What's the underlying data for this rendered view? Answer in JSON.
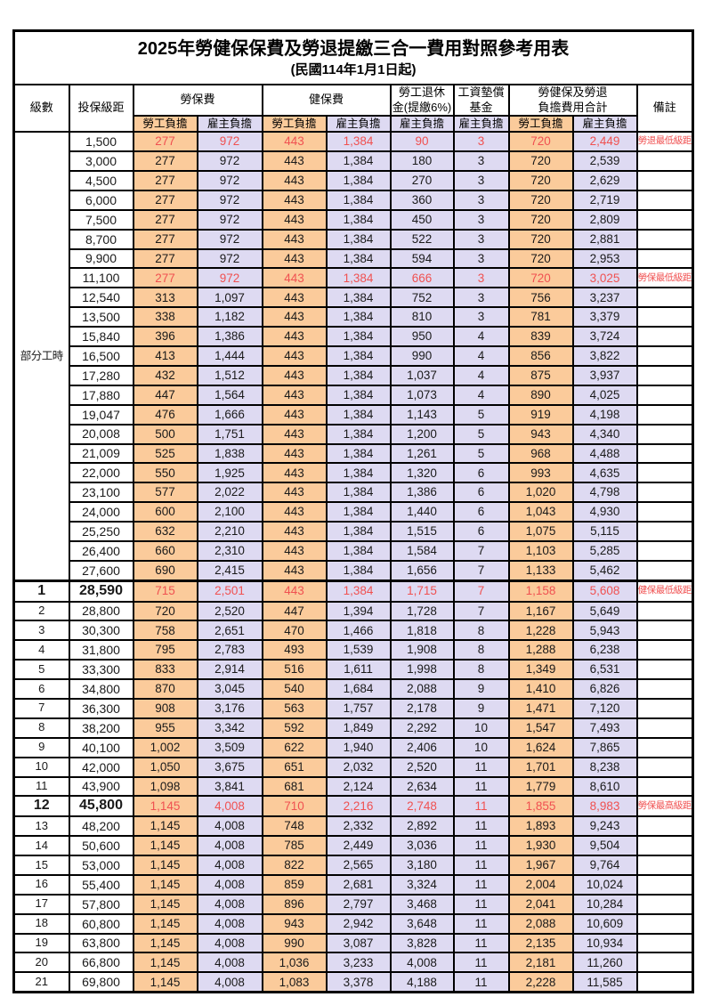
{
  "title": "2025年勞健保保費及勞退提繳三合一費用對照參考用表",
  "subtitle": "(民國114年1月1日起)",
  "colors": {
    "employee_share_bg": "#FBCB9B",
    "employer_share_bg": "#DEDAF2",
    "highlight_text": "#F05151",
    "border": "#000000"
  },
  "headers": {
    "level": "級數",
    "salary_bracket": "投保級距",
    "labor_insurance": "勞保費",
    "health_insurance": "健保費",
    "pension_line1": "勞工退休",
    "pension_line2": "金(提繳6%)",
    "wage_fund_line1": "工資墊償",
    "wage_fund_line2": "基金",
    "total_line1": "勞健保及勞退",
    "total_line2": "負擔費用合計",
    "note": "備註",
    "employee_share": "勞工負擔",
    "employer_share": "雇主負擔"
  },
  "part_time": {
    "label": "部分工時",
    "row_count": 23
  },
  "rows": [
    {
      "level": "",
      "salary": "1,500",
      "labor_emp": "277",
      "labor_er": "972",
      "health_emp": "443",
      "health_er": "1,384",
      "pension_er": "90",
      "fund_er": "3",
      "total_emp": "720",
      "total_er": "2,449",
      "note": "勞退最低級距",
      "highlight": true,
      "emphasis": false
    },
    {
      "level": "",
      "salary": "3,000",
      "labor_emp": "277",
      "labor_er": "972",
      "health_emp": "443",
      "health_er": "1,384",
      "pension_er": "180",
      "fund_er": "3",
      "total_emp": "720",
      "total_er": "2,539",
      "note": "",
      "highlight": false,
      "emphasis": false
    },
    {
      "level": "",
      "salary": "4,500",
      "labor_emp": "277",
      "labor_er": "972",
      "health_emp": "443",
      "health_er": "1,384",
      "pension_er": "270",
      "fund_er": "3",
      "total_emp": "720",
      "total_er": "2,629",
      "note": "",
      "highlight": false,
      "emphasis": false
    },
    {
      "level": "",
      "salary": "6,000",
      "labor_emp": "277",
      "labor_er": "972",
      "health_emp": "443",
      "health_er": "1,384",
      "pension_er": "360",
      "fund_er": "3",
      "total_emp": "720",
      "total_er": "2,719",
      "note": "",
      "highlight": false,
      "emphasis": false
    },
    {
      "level": "",
      "salary": "7,500",
      "labor_emp": "277",
      "labor_er": "972",
      "health_emp": "443",
      "health_er": "1,384",
      "pension_er": "450",
      "fund_er": "3",
      "total_emp": "720",
      "total_er": "2,809",
      "note": "",
      "highlight": false,
      "emphasis": false
    },
    {
      "level": "",
      "salary": "8,700",
      "labor_emp": "277",
      "labor_er": "972",
      "health_emp": "443",
      "health_er": "1,384",
      "pension_er": "522",
      "fund_er": "3",
      "total_emp": "720",
      "total_er": "2,881",
      "note": "",
      "highlight": false,
      "emphasis": false
    },
    {
      "level": "",
      "salary": "9,900",
      "labor_emp": "277",
      "labor_er": "972",
      "health_emp": "443",
      "health_er": "1,384",
      "pension_er": "594",
      "fund_er": "3",
      "total_emp": "720",
      "total_er": "2,953",
      "note": "",
      "highlight": false,
      "emphasis": false
    },
    {
      "level": "",
      "salary": "11,100",
      "labor_emp": "277",
      "labor_er": "972",
      "health_emp": "443",
      "health_er": "1,384",
      "pension_er": "666",
      "fund_er": "3",
      "total_emp": "720",
      "total_er": "3,025",
      "note": "勞保最低級距",
      "highlight": true,
      "emphasis": false
    },
    {
      "level": "",
      "salary": "12,540",
      "labor_emp": "313",
      "labor_er": "1,097",
      "health_emp": "443",
      "health_er": "1,384",
      "pension_er": "752",
      "fund_er": "3",
      "total_emp": "756",
      "total_er": "3,237",
      "note": "",
      "highlight": false,
      "emphasis": false
    },
    {
      "level": "",
      "salary": "13,500",
      "labor_emp": "338",
      "labor_er": "1,182",
      "health_emp": "443",
      "health_er": "1,384",
      "pension_er": "810",
      "fund_er": "3",
      "total_emp": "781",
      "total_er": "3,379",
      "note": "",
      "highlight": false,
      "emphasis": false
    },
    {
      "level": "",
      "salary": "15,840",
      "labor_emp": "396",
      "labor_er": "1,386",
      "health_emp": "443",
      "health_er": "1,384",
      "pension_er": "950",
      "fund_er": "4",
      "total_emp": "839",
      "total_er": "3,724",
      "note": "",
      "highlight": false,
      "emphasis": false
    },
    {
      "level": "",
      "salary": "16,500",
      "labor_emp": "413",
      "labor_er": "1,444",
      "health_emp": "443",
      "health_er": "1,384",
      "pension_er": "990",
      "fund_er": "4",
      "total_emp": "856",
      "total_er": "3,822",
      "note": "",
      "highlight": false,
      "emphasis": false
    },
    {
      "level": "",
      "salary": "17,280",
      "labor_emp": "432",
      "labor_er": "1,512",
      "health_emp": "443",
      "health_er": "1,384",
      "pension_er": "1,037",
      "fund_er": "4",
      "total_emp": "875",
      "total_er": "3,937",
      "note": "",
      "highlight": false,
      "emphasis": false
    },
    {
      "level": "",
      "salary": "17,880",
      "labor_emp": "447",
      "labor_er": "1,564",
      "health_emp": "443",
      "health_er": "1,384",
      "pension_er": "1,073",
      "fund_er": "4",
      "total_emp": "890",
      "total_er": "4,025",
      "note": "",
      "highlight": false,
      "emphasis": false
    },
    {
      "level": "",
      "salary": "19,047",
      "labor_emp": "476",
      "labor_er": "1,666",
      "health_emp": "443",
      "health_er": "1,384",
      "pension_er": "1,143",
      "fund_er": "5",
      "total_emp": "919",
      "total_er": "4,198",
      "note": "",
      "highlight": false,
      "emphasis": false
    },
    {
      "level": "",
      "salary": "20,008",
      "labor_emp": "500",
      "labor_er": "1,751",
      "health_emp": "443",
      "health_er": "1,384",
      "pension_er": "1,200",
      "fund_er": "5",
      "total_emp": "943",
      "total_er": "4,340",
      "note": "",
      "highlight": false,
      "emphasis": false
    },
    {
      "level": "",
      "salary": "21,009",
      "labor_emp": "525",
      "labor_er": "1,838",
      "health_emp": "443",
      "health_er": "1,384",
      "pension_er": "1,261",
      "fund_er": "5",
      "total_emp": "968",
      "total_er": "4,488",
      "note": "",
      "highlight": false,
      "emphasis": false
    },
    {
      "level": "",
      "salary": "22,000",
      "labor_emp": "550",
      "labor_er": "1,925",
      "health_emp": "443",
      "health_er": "1,384",
      "pension_er": "1,320",
      "fund_er": "6",
      "total_emp": "993",
      "total_er": "4,635",
      "note": "",
      "highlight": false,
      "emphasis": false
    },
    {
      "level": "",
      "salary": "23,100",
      "labor_emp": "577",
      "labor_er": "2,022",
      "health_emp": "443",
      "health_er": "1,384",
      "pension_er": "1,386",
      "fund_er": "6",
      "total_emp": "1,020",
      "total_er": "4,798",
      "note": "",
      "highlight": false,
      "emphasis": false
    },
    {
      "level": "",
      "salary": "24,000",
      "labor_emp": "600",
      "labor_er": "2,100",
      "health_emp": "443",
      "health_er": "1,384",
      "pension_er": "1,440",
      "fund_er": "6",
      "total_emp": "1,043",
      "total_er": "4,930",
      "note": "",
      "highlight": false,
      "emphasis": false
    },
    {
      "level": "",
      "salary": "25,250",
      "labor_emp": "632",
      "labor_er": "2,210",
      "health_emp": "443",
      "health_er": "1,384",
      "pension_er": "1,515",
      "fund_er": "6",
      "total_emp": "1,075",
      "total_er": "5,115",
      "note": "",
      "highlight": false,
      "emphasis": false
    },
    {
      "level": "",
      "salary": "26,400",
      "labor_emp": "660",
      "labor_er": "2,310",
      "health_emp": "443",
      "health_er": "1,384",
      "pension_er": "1,584",
      "fund_er": "7",
      "total_emp": "1,103",
      "total_er": "5,285",
      "note": "",
      "highlight": false,
      "emphasis": false
    },
    {
      "level": "",
      "salary": "27,600",
      "labor_emp": "690",
      "labor_er": "2,415",
      "health_emp": "443",
      "health_er": "1,384",
      "pension_er": "1,656",
      "fund_er": "7",
      "total_emp": "1,133",
      "total_er": "5,462",
      "note": "",
      "highlight": false,
      "emphasis": false
    },
    {
      "level": "1",
      "salary": "28,590",
      "labor_emp": "715",
      "labor_er": "2,501",
      "health_emp": "443",
      "health_er": "1,384",
      "pension_er": "1,715",
      "fund_er": "7",
      "total_emp": "1,158",
      "total_er": "5,608",
      "note": "健保最低級距",
      "highlight": true,
      "emphasis": true
    },
    {
      "level": "2",
      "salary": "28,800",
      "labor_emp": "720",
      "labor_er": "2,520",
      "health_emp": "447",
      "health_er": "1,394",
      "pension_er": "1,728",
      "fund_er": "7",
      "total_emp": "1,167",
      "total_er": "5,649",
      "note": "",
      "highlight": false,
      "emphasis": false
    },
    {
      "level": "3",
      "salary": "30,300",
      "labor_emp": "758",
      "labor_er": "2,651",
      "health_emp": "470",
      "health_er": "1,466",
      "pension_er": "1,818",
      "fund_er": "8",
      "total_emp": "1,228",
      "total_er": "5,943",
      "note": "",
      "highlight": false,
      "emphasis": false
    },
    {
      "level": "4",
      "salary": "31,800",
      "labor_emp": "795",
      "labor_er": "2,783",
      "health_emp": "493",
      "health_er": "1,539",
      "pension_er": "1,908",
      "fund_er": "8",
      "total_emp": "1,288",
      "total_er": "6,238",
      "note": "",
      "highlight": false,
      "emphasis": false
    },
    {
      "level": "5",
      "salary": "33,300",
      "labor_emp": "833",
      "labor_er": "2,914",
      "health_emp": "516",
      "health_er": "1,611",
      "pension_er": "1,998",
      "fund_er": "8",
      "total_emp": "1,349",
      "total_er": "6,531",
      "note": "",
      "highlight": false,
      "emphasis": false
    },
    {
      "level": "6",
      "salary": "34,800",
      "labor_emp": "870",
      "labor_er": "3,045",
      "health_emp": "540",
      "health_er": "1,684",
      "pension_er": "2,088",
      "fund_er": "9",
      "total_emp": "1,410",
      "total_er": "6,826",
      "note": "",
      "highlight": false,
      "emphasis": false
    },
    {
      "level": "7",
      "salary": "36,300",
      "labor_emp": "908",
      "labor_er": "3,176",
      "health_emp": "563",
      "health_er": "1,757",
      "pension_er": "2,178",
      "fund_er": "9",
      "total_emp": "1,471",
      "total_er": "7,120",
      "note": "",
      "highlight": false,
      "emphasis": false
    },
    {
      "level": "8",
      "salary": "38,200",
      "labor_emp": "955",
      "labor_er": "3,342",
      "health_emp": "592",
      "health_er": "1,849",
      "pension_er": "2,292",
      "fund_er": "10",
      "total_emp": "1,547",
      "total_er": "7,493",
      "note": "",
      "highlight": false,
      "emphasis": false
    },
    {
      "level": "9",
      "salary": "40,100",
      "labor_emp": "1,002",
      "labor_er": "3,509",
      "health_emp": "622",
      "health_er": "1,940",
      "pension_er": "2,406",
      "fund_er": "10",
      "total_emp": "1,624",
      "total_er": "7,865",
      "note": "",
      "highlight": false,
      "emphasis": false
    },
    {
      "level": "10",
      "salary": "42,000",
      "labor_emp": "1,050",
      "labor_er": "3,675",
      "health_emp": "651",
      "health_er": "2,032",
      "pension_er": "2,520",
      "fund_er": "11",
      "total_emp": "1,701",
      "total_er": "8,238",
      "note": "",
      "highlight": false,
      "emphasis": false
    },
    {
      "level": "11",
      "salary": "43,900",
      "labor_emp": "1,098",
      "labor_er": "3,841",
      "health_emp": "681",
      "health_er": "2,124",
      "pension_er": "2,634",
      "fund_er": "11",
      "total_emp": "1,779",
      "total_er": "8,610",
      "note": "",
      "highlight": false,
      "emphasis": false
    },
    {
      "level": "12",
      "salary": "45,800",
      "labor_emp": "1,145",
      "labor_er": "4,008",
      "health_emp": "710",
      "health_er": "2,216",
      "pension_er": "2,748",
      "fund_er": "11",
      "total_emp": "1,855",
      "total_er": "8,983",
      "note": "勞保最高級距",
      "highlight": true,
      "emphasis": true
    },
    {
      "level": "13",
      "salary": "48,200",
      "labor_emp": "1,145",
      "labor_er": "4,008",
      "health_emp": "748",
      "health_er": "2,332",
      "pension_er": "2,892",
      "fund_er": "11",
      "total_emp": "1,893",
      "total_er": "9,243",
      "note": "",
      "highlight": false,
      "emphasis": false
    },
    {
      "level": "14",
      "salary": "50,600",
      "labor_emp": "1,145",
      "labor_er": "4,008",
      "health_emp": "785",
      "health_er": "2,449",
      "pension_er": "3,036",
      "fund_er": "11",
      "total_emp": "1,930",
      "total_er": "9,504",
      "note": "",
      "highlight": false,
      "emphasis": false
    },
    {
      "level": "15",
      "salary": "53,000",
      "labor_emp": "1,145",
      "labor_er": "4,008",
      "health_emp": "822",
      "health_er": "2,565",
      "pension_er": "3,180",
      "fund_er": "11",
      "total_emp": "1,967",
      "total_er": "9,764",
      "note": "",
      "highlight": false,
      "emphasis": false
    },
    {
      "level": "16",
      "salary": "55,400",
      "labor_emp": "1,145",
      "labor_er": "4,008",
      "health_emp": "859",
      "health_er": "2,681",
      "pension_er": "3,324",
      "fund_er": "11",
      "total_emp": "2,004",
      "total_er": "10,024",
      "note": "",
      "highlight": false,
      "emphasis": false
    },
    {
      "level": "17",
      "salary": "57,800",
      "labor_emp": "1,145",
      "labor_er": "4,008",
      "health_emp": "896",
      "health_er": "2,797",
      "pension_er": "3,468",
      "fund_er": "11",
      "total_emp": "2,041",
      "total_er": "10,284",
      "note": "",
      "highlight": false,
      "emphasis": false
    },
    {
      "level": "18",
      "salary": "60,800",
      "labor_emp": "1,145",
      "labor_er": "4,008",
      "health_emp": "943",
      "health_er": "2,942",
      "pension_er": "3,648",
      "fund_er": "11",
      "total_emp": "2,088",
      "total_er": "10,609",
      "note": "",
      "highlight": false,
      "emphasis": false
    },
    {
      "level": "19",
      "salary": "63,800",
      "labor_emp": "1,145",
      "labor_er": "4,008",
      "health_emp": "990",
      "health_er": "3,087",
      "pension_er": "3,828",
      "fund_er": "11",
      "total_emp": "2,135",
      "total_er": "10,934",
      "note": "",
      "highlight": false,
      "emphasis": false
    },
    {
      "level": "20",
      "salary": "66,800",
      "labor_emp": "1,145",
      "labor_er": "4,008",
      "health_emp": "1,036",
      "health_er": "3,233",
      "pension_er": "4,008",
      "fund_er": "11",
      "total_emp": "2,181",
      "total_er": "11,260",
      "note": "",
      "highlight": false,
      "emphasis": false
    },
    {
      "level": "21",
      "salary": "69,800",
      "labor_emp": "1,145",
      "labor_er": "4,008",
      "health_emp": "1,083",
      "health_er": "3,378",
      "pension_er": "4,188",
      "fund_er": "11",
      "total_emp": "2,228",
      "total_er": "11,585",
      "note": "",
      "highlight": false,
      "emphasis": false
    }
  ]
}
